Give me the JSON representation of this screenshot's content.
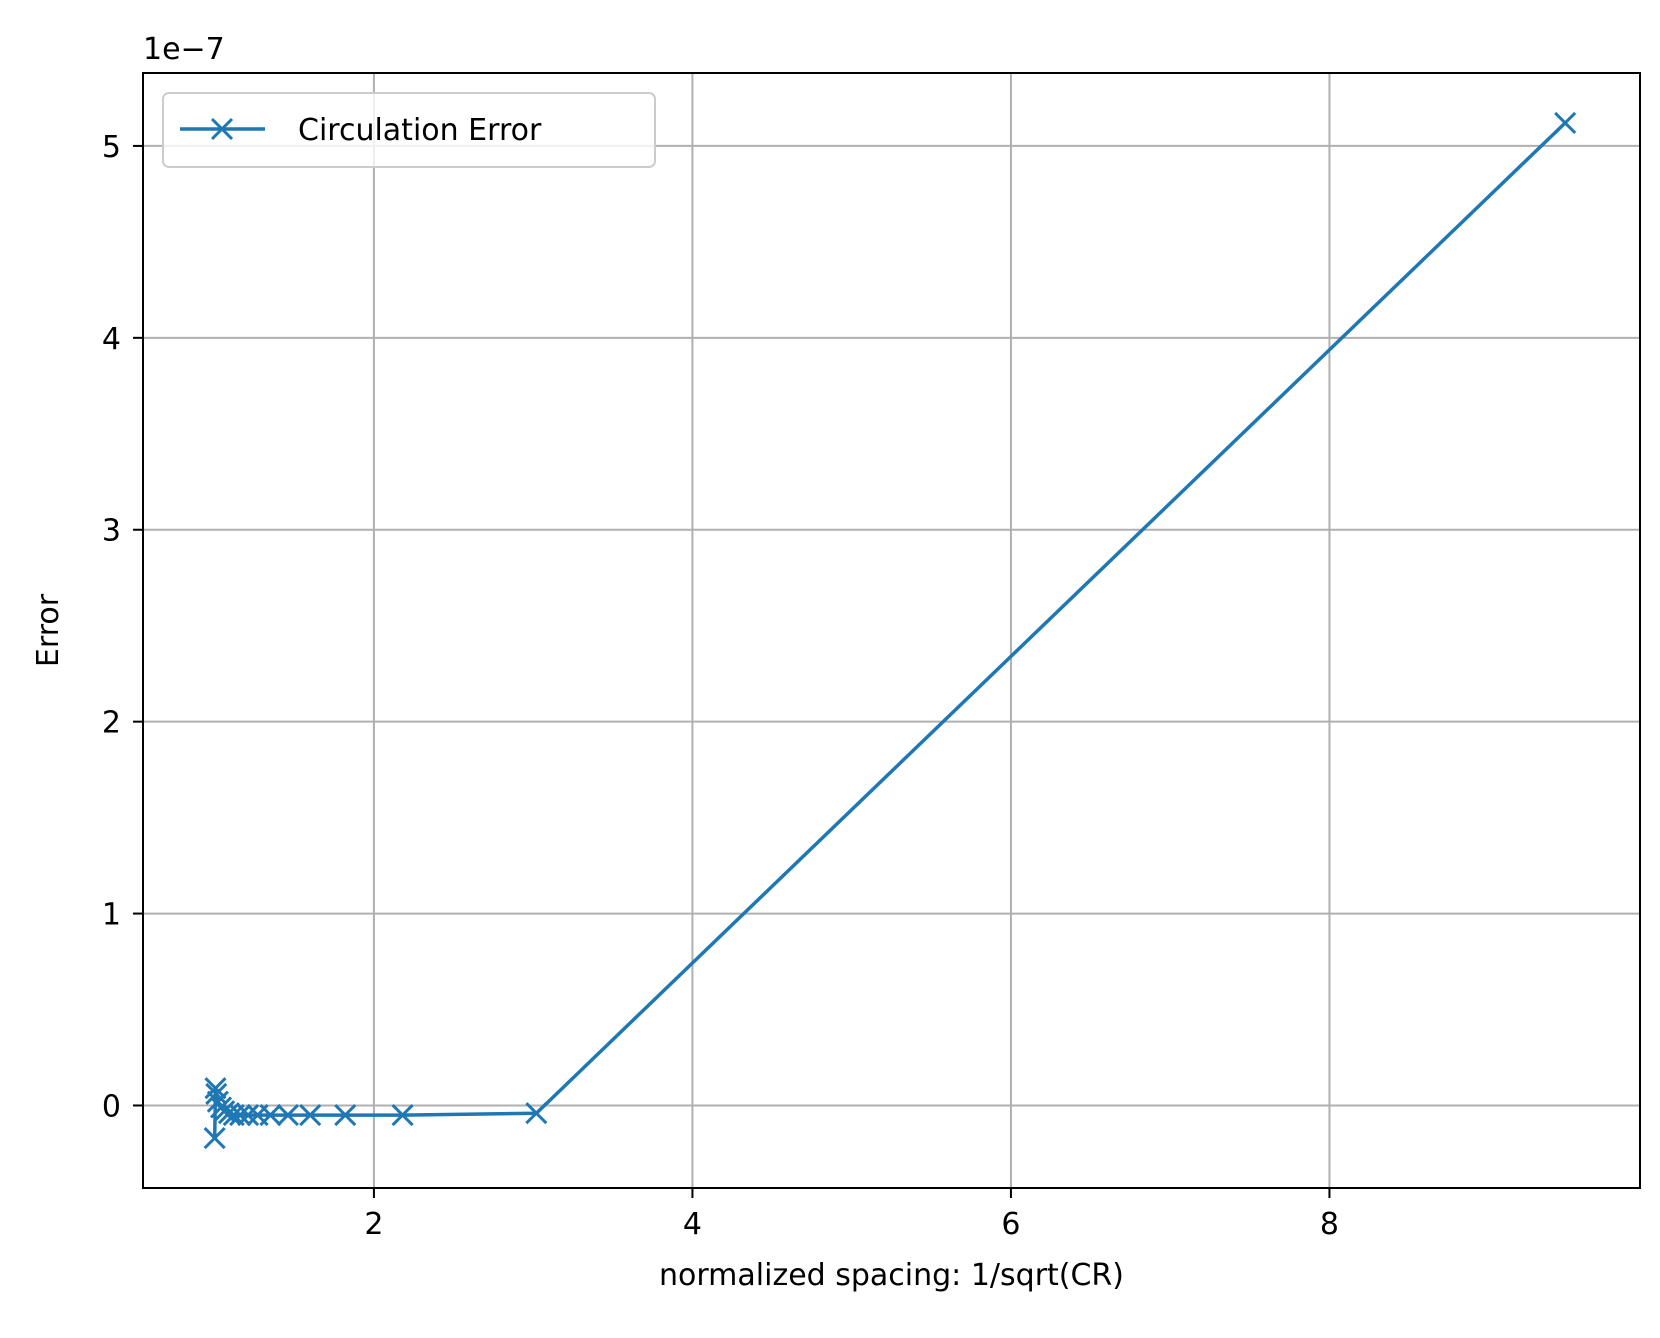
{
  "chart_data": {
    "type": "line",
    "xlabel": "normalized spacing: 1/sqrt(CR)",
    "ylabel": "Error",
    "y_offset_label": "1e−7",
    "y_scale": 1e-07,
    "xlim": [
      0.55,
      9.95
    ],
    "ylim": [
      -4.3e-08,
      5.38e-07
    ],
    "x_ticks": [
      2,
      4,
      6,
      8
    ],
    "x_tick_labels": [
      "2",
      "4",
      "6",
      "8"
    ],
    "y_ticks": [
      0,
      1e-07,
      2e-07,
      3e-07,
      4e-07,
      5e-07
    ],
    "y_tick_labels": [
      "0",
      "1",
      "2",
      "3",
      "4",
      "5"
    ],
    "grid": true,
    "legend_position": "upper-left",
    "series": [
      {
        "name": "Circulation Error",
        "color": "#1f77b4",
        "marker": "x",
        "x": [
          9.48,
          3.02,
          2.18,
          1.82,
          1.6,
          1.46,
          1.35,
          1.27,
          1.21,
          1.16,
          1.12,
          1.09,
          1.06,
          1.04,
          1.02,
          1.01,
          1.005,
          1.0
        ],
        "y": [
          5.12e-07,
          -4e-09,
          -5e-09,
          -5e-09,
          -5e-09,
          -5e-09,
          -5e-09,
          -5e-09,
          -5e-09,
          -5e-09,
          -5e-09,
          -4e-09,
          -3e-09,
          -1e-09,
          2e-09,
          6e-09,
          9e-09,
          -1.7e-08
        ]
      }
    ]
  }
}
